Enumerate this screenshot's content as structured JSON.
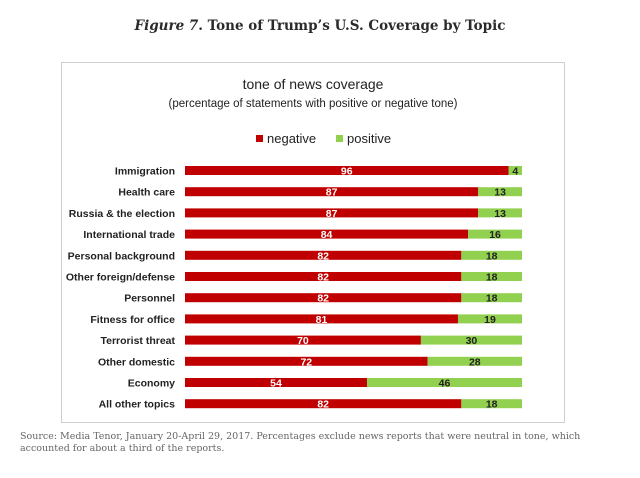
{
  "figure": {
    "label": "Figure 7",
    "title": ". Tone of Trump’s U.S. Coverage by Topic"
  },
  "chart_data": {
    "type": "bar",
    "orientation": "horizontal",
    "stacked": true,
    "title": "tone of news coverage",
    "subtitle": "(percentage of statements with positive or negative tone)",
    "xlabel": "",
    "ylabel": "",
    "xlim": [
      0,
      100
    ],
    "grid": false,
    "legend_position": "top-center",
    "categories": [
      "Immigration",
      "Health care",
      "Russia & the election",
      "International trade",
      "Personal background",
      "Other foreign/defense",
      "Personnel",
      "Fitness for office",
      "Terrorist threat",
      "Other domestic",
      "Economy",
      "All other topics"
    ],
    "series": [
      {
        "name": "negative",
        "color": "#c00000",
        "values": [
          96,
          87,
          87,
          84,
          82,
          82,
          82,
          81,
          70,
          72,
          54,
          82
        ]
      },
      {
        "name": "positive",
        "color": "#92d050",
        "values": [
          4,
          13,
          13,
          16,
          18,
          18,
          18,
          19,
          30,
          28,
          46,
          18
        ]
      }
    ]
  },
  "source_note": "Source: Media Tenor, January 20-April 29, 2017. Percentages exclude news reports that were neutral in tone, which accounted for about a third of the reports."
}
